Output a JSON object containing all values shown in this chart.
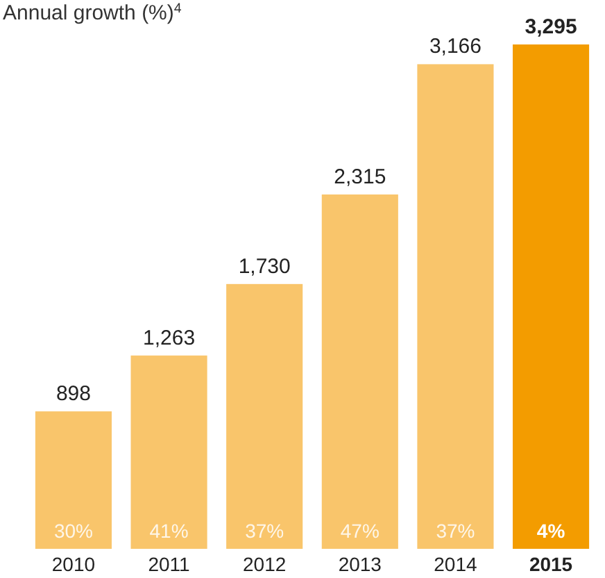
{
  "chart_data": {
    "type": "bar",
    "title": "Annual growth (%)$^{4}$",
    "categories": [
      "2010",
      "2011",
      "2012",
      "2013",
      "2014",
      "2015"
    ],
    "values": [
      898,
      1263,
      1730,
      2315,
      3166,
      3295
    ],
    "colors": [
      "#f9c56b",
      "#f9c56b",
      "#f9c56b",
      "#f9c56b",
      "#f9c56b",
      "#f39c00"
    ],
    "value_labels": [
      "898",
      "1,263",
      "1,730",
      "2,315",
      "3,166",
      "3,295"
    ],
    "annotations": [
      {
        "text": "30%",
        "x": "2010",
        "y": 0
      },
      {
        "text": "41%",
        "x": "2011",
        "y": 0
      },
      {
        "text": "37%",
        "x": "2012",
        "y": 0
      },
      {
        "text": "47%",
        "x": "2013",
        "y": 0
      },
      {
        "text": "37%",
        "x": "2014",
        "y": 0
      },
      {
        "text": "4%",
        "x": "2015",
        "y": 0
      }
    ]
  }
}
